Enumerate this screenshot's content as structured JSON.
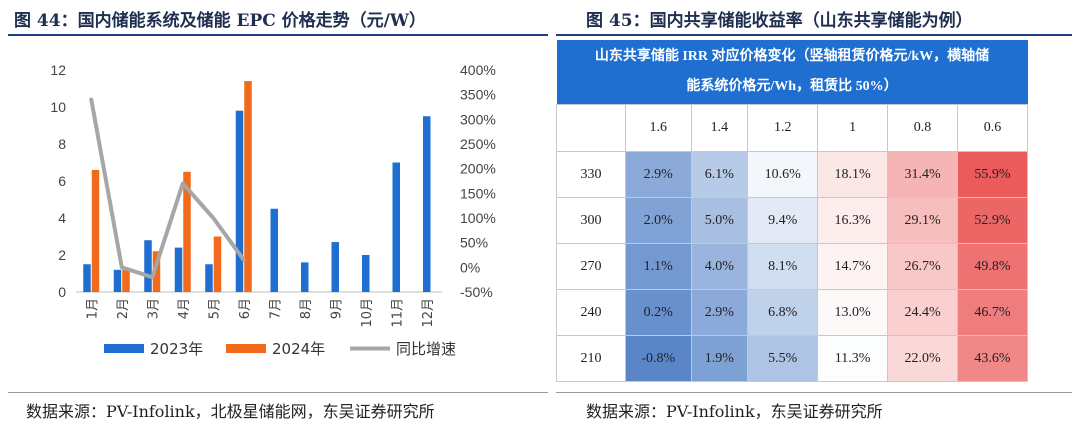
{
  "left": {
    "title": "图 44：国内储能系统及储能 EPC 价格走势（元/W）",
    "source": "数据来源：PV-Infolink，北极星储能网，东吴证券研究所"
  },
  "right": {
    "title": "图 45：国内共享储能收益率（山东共享储能为例）",
    "source": "数据来源：PV-Infolink，东吴证券研究所"
  },
  "colors": {
    "blue": "#1f6fd0",
    "orange": "#f26a1b",
    "gray": "#a6a6a6",
    "heat_blue": "#5a86c8",
    "heat_red": "#ec5b5b",
    "title_navy": "#1f2f4f"
  },
  "chart_data": [
    {
      "type": "bar",
      "title": "国内储能系统及储能 EPC 价格走势（元/W）",
      "categories": [
        "1月",
        "2月",
        "3月",
        "4月",
        "5月",
        "6月",
        "7月",
        "8月",
        "9月",
        "10月",
        "11月",
        "12月"
      ],
      "series": [
        {
          "name": "2023年",
          "type": "bar",
          "axis": "left",
          "values": [
            1.5,
            1.2,
            2.8,
            2.4,
            1.5,
            9.8,
            4.5,
            1.6,
            2.7,
            2.0,
            7.0,
            9.5
          ]
        },
        {
          "name": "2024年",
          "type": "bar",
          "axis": "left",
          "values": [
            6.6,
            1.2,
            2.2,
            6.5,
            3.0,
            11.4,
            null,
            null,
            null,
            null,
            null,
            null
          ]
        },
        {
          "name": "同比增速",
          "type": "line",
          "axis": "right",
          "values": [
            340,
            0,
            -20,
            170,
            100,
            15,
            null,
            null,
            null,
            null,
            null,
            null
          ]
        }
      ],
      "yleft": {
        "min": 0,
        "max": 12,
        "step": 2,
        "ticks": [
          "0",
          "2",
          "4",
          "6",
          "8",
          "10",
          "12"
        ]
      },
      "yright": {
        "min": -50,
        "max": 400,
        "step": 50,
        "ticks": [
          "-50%",
          "0%",
          "50%",
          "100%",
          "150%",
          "200%",
          "250%",
          "300%",
          "350%",
          "400%"
        ]
      },
      "legend": [
        "2023年",
        "2024年",
        "同比增速"
      ]
    },
    {
      "type": "heatmap",
      "title": "山东共享储能 IRR 对应价格变化（竖轴租赁价格元/kW，横轴储能系统价格元/Wh，租赁比 50%）",
      "header_lines": [
        "山东共享储能 IRR 对应价格变化（竖轴租赁价格元/kW，横轴储",
        "能系统价格元/Wh，租赁比 50%）"
      ],
      "columns": [
        "1.6",
        "1.4",
        "1.2",
        "1",
        "0.8",
        "0.6"
      ],
      "rows": [
        "330",
        "300",
        "270",
        "240",
        "210"
      ],
      "values": [
        [
          2.9,
          6.1,
          10.6,
          18.1,
          31.4,
          55.9
        ],
        [
          2.0,
          5.0,
          9.4,
          16.3,
          29.1,
          52.9
        ],
        [
          1.1,
          4.0,
          8.1,
          14.7,
          26.7,
          49.8
        ],
        [
          0.2,
          2.9,
          6.8,
          13.0,
          24.4,
          46.7
        ],
        [
          -0.8,
          1.9,
          5.5,
          11.3,
          22.0,
          43.6
        ]
      ],
      "labels": [
        [
          "2.9%",
          "6.1%",
          "10.6%",
          "18.1%",
          "31.4%",
          "55.9%"
        ],
        [
          "2.0%",
          "5.0%",
          "9.4%",
          "16.3%",
          "29.1%",
          "52.9%"
        ],
        [
          "1.1%",
          "4.0%",
          "8.1%",
          "14.7%",
          "26.7%",
          "49.8%"
        ],
        [
          "0.2%",
          "2.9%",
          "6.8%",
          "13.0%",
          "24.4%",
          "46.7%"
        ],
        [
          "-0.8%",
          "1.9%",
          "5.5%",
          "11.3%",
          "22.0%",
          "43.6%"
        ]
      ]
    }
  ]
}
